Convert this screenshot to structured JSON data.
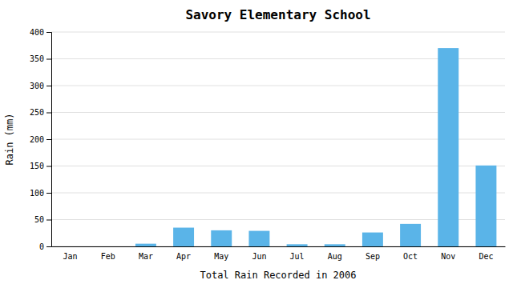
{
  "chart_data": {
    "type": "bar",
    "title": "Savory Elementary School",
    "xlabel": "Total Rain Recorded in 2006",
    "ylabel": "Rain (mm)",
    "categories": [
      "Jan",
      "Feb",
      "Mar",
      "Apr",
      "May",
      "Jun",
      "Jul",
      "Aug",
      "Sep",
      "Oct",
      "Nov",
      "Dec"
    ],
    "values": [
      0,
      0,
      5,
      35,
      30,
      29,
      4,
      4,
      26,
      42,
      370,
      151
    ],
    "color": "#5ab4e8",
    "ylim": [
      0,
      400
    ],
    "yticks": [
      0,
      50,
      100,
      150,
      200,
      250,
      300,
      350,
      400
    ],
    "grid": true
  }
}
